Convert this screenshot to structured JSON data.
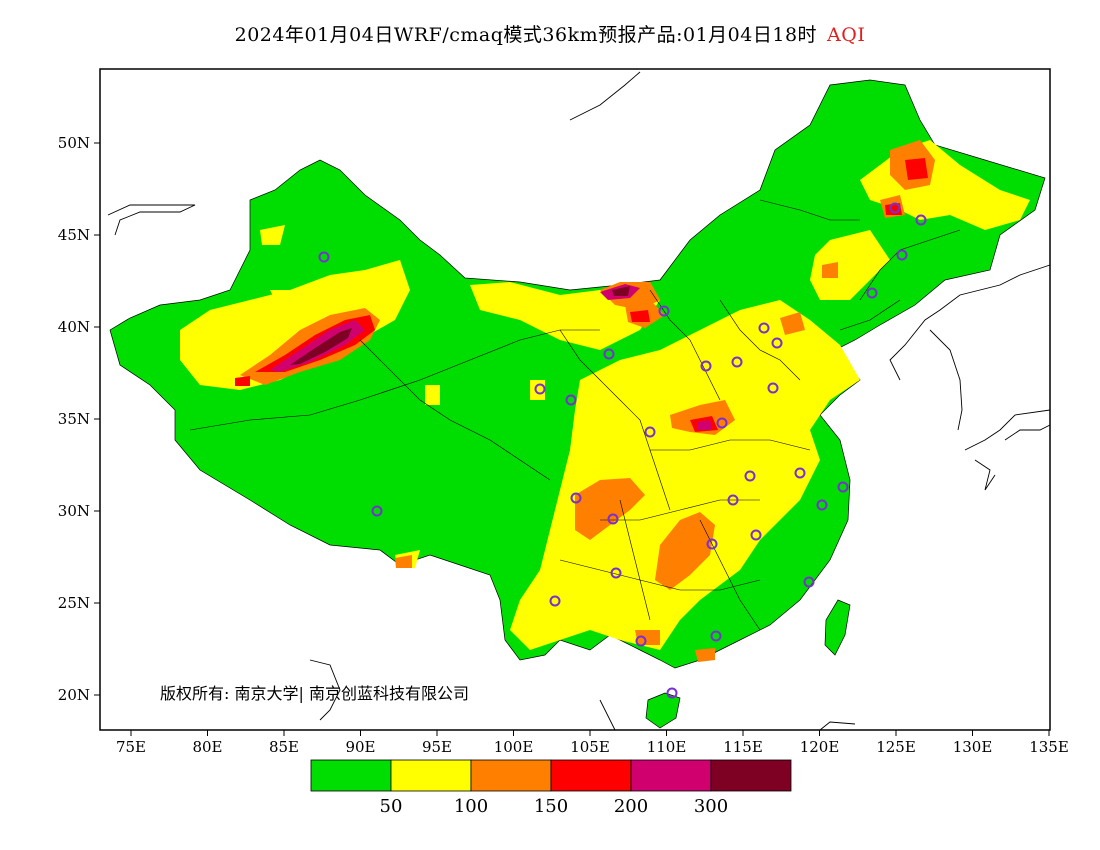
{
  "title": {
    "main": "2024年01月04日WRF/cmaq模式36km预报产品:01月04日18时",
    "variable": "AQI"
  },
  "axes": {
    "lon_ticks": [
      "75E",
      "80E",
      "85E",
      "90E",
      "95E",
      "100E",
      "105E",
      "110E",
      "115E",
      "120E",
      "125E",
      "130E",
      "135E"
    ],
    "lat_ticks": [
      "20N",
      "25N",
      "30N",
      "35N",
      "40N",
      "45N",
      "50N"
    ]
  },
  "legend": {
    "colors": [
      "#00dd00",
      "#ffff00",
      "#ff8000",
      "#ff0000",
      "#d0006f",
      "#7e0023"
    ],
    "labels": [
      "50",
      "100",
      "150",
      "200",
      "300"
    ]
  },
  "copyright": "版权所有: 南京大学| 南京创蓝科技有限公司",
  "colors": {
    "good": "#00dd00",
    "moderate": "#ffff00",
    "usg": "#ff8000",
    "unhealthy": "#ff0000",
    "very_unhealthy": "#d0006f",
    "hazardous": "#7e0023",
    "station_marker": "#7a2fd0"
  }
}
